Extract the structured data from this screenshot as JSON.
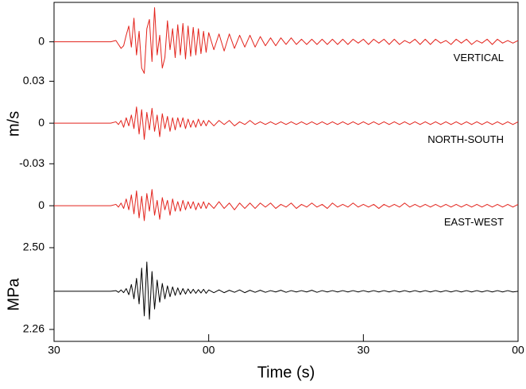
{
  "chart_data": [
    {
      "type": "line",
      "label": "VERTICAL",
      "color": "#e3231c",
      "xlim": [
        0,
        90
      ],
      "ylim": [
        -0.031,
        0.03
      ],
      "yticks": [
        0,
        {
          "value": -0.03,
          "label": "0.03"
        }
      ],
      "x": [
        0,
        11,
        12,
        12.5,
        13,
        13.5,
        14,
        14.5,
        15,
        15.5,
        16,
        16.5,
        17,
        17.5,
        18,
        18.5,
        19,
        19.5,
        20,
        20.5,
        21,
        21.5,
        22,
        22.5,
        23,
        23.5,
        24,
        24.5,
        25,
        25.5,
        26,
        26.5,
        27,
        27.5,
        28,
        28.5,
        29,
        29.5,
        30,
        31,
        32,
        33,
        34,
        35,
        36,
        37,
        38,
        39,
        40,
        41,
        42,
        43,
        44,
        45,
        46,
        47,
        48,
        49,
        50,
        51,
        52,
        53,
        54,
        55,
        56,
        57,
        58,
        59,
        60,
        61,
        62,
        63,
        64,
        65,
        66,
        67,
        68,
        69,
        70,
        71,
        72,
        73,
        74,
        75,
        76,
        77,
        78,
        79,
        80,
        81,
        82,
        83,
        84,
        85,
        86,
        87,
        88,
        89,
        90
      ],
      "values": [
        0,
        0,
        0.001,
        -0.002,
        -0.005,
        -0.003,
        0.005,
        0.012,
        -0.004,
        0.018,
        -0.01,
        0.008,
        -0.02,
        -0.024,
        0.01,
        0.017,
        -0.015,
        0.026,
        -0.01,
        0.005,
        -0.02,
        -0.012,
        0.016,
        -0.006,
        0.01,
        -0.012,
        0.013,
        -0.01,
        0.014,
        -0.013,
        0.012,
        -0.011,
        0.011,
        -0.01,
        0.01,
        -0.009,
        0.008,
        -0.008,
        0.007,
        -0.006,
        0.006,
        -0.007,
        0.006,
        -0.005,
        0.005,
        -0.004,
        0.005,
        -0.004,
        0.004,
        -0.003,
        0.003,
        -0.003,
        0.003,
        -0.002,
        0.003,
        -0.002,
        0.002,
        -0.002,
        0.002,
        -0.002,
        0.002,
        -0.002,
        0.002,
        -0.002,
        0.002,
        -0.002,
        0.002,
        -0.001,
        0.002,
        -0.002,
        0.002,
        -0.001,
        0.002,
        -0.002,
        0.002,
        -0.002,
        0.001,
        -0.001,
        0.002,
        -0.002,
        0.002,
        -0.002,
        0.002,
        -0.001,
        0.001,
        -0.002,
        0.002,
        -0.001,
        0.002,
        -0.002,
        0.001,
        -0.001,
        0.002,
        -0.002,
        0.002,
        -0.001,
        0.001,
        -0.001,
        0.001
      ]
    },
    {
      "type": "line",
      "label": "NORTH-SOUTH",
      "ylabel": "m/s",
      "color": "#e3231c",
      "xlim": [
        0,
        90
      ],
      "ylim": [
        -0.031,
        0.03
      ],
      "yticks": [
        0,
        -0.03
      ],
      "x": [
        0,
        11,
        12,
        12.5,
        13,
        13.5,
        14,
        14.5,
        15,
        15.5,
        16,
        16.5,
        17,
        17.5,
        18,
        18.5,
        19,
        19.5,
        20,
        20.5,
        21,
        21.5,
        22,
        22.5,
        23,
        23.5,
        24,
        24.5,
        25,
        25.5,
        26,
        26.5,
        27,
        27.5,
        28,
        28.5,
        29,
        29.5,
        30,
        31,
        32,
        33,
        34,
        35,
        36,
        37,
        38,
        39,
        40,
        41,
        42,
        43,
        44,
        45,
        46,
        47,
        48,
        49,
        50,
        51,
        52,
        53,
        54,
        55,
        56,
        57,
        58,
        59,
        60,
        61,
        62,
        63,
        64,
        65,
        66,
        67,
        68,
        69,
        70,
        71,
        72,
        73,
        74,
        75,
        76,
        77,
        78,
        79,
        80,
        81,
        82,
        83,
        84,
        85,
        86,
        87,
        88,
        89,
        90
      ],
      "values": [
        0,
        0,
        0.001,
        -0.001,
        0.002,
        -0.003,
        0.004,
        -0.002,
        0.006,
        -0.004,
        0.012,
        -0.008,
        0.01,
        -0.012,
        0.008,
        -0.005,
        0.011,
        -0.006,
        0.006,
        -0.01,
        0.007,
        -0.004,
        0.005,
        -0.006,
        0.004,
        -0.005,
        0.004,
        -0.003,
        0.004,
        -0.004,
        0.003,
        -0.003,
        0.002,
        -0.003,
        0.003,
        -0.002,
        0.002,
        -0.002,
        0.002,
        -0.002,
        0.002,
        -0.001,
        0.002,
        -0.002,
        0.001,
        -0.001,
        0.002,
        -0.001,
        0.001,
        -0.001,
        0.001,
        -0.001,
        0.001,
        -0.001,
        0.001,
        -0.001,
        0.001,
        -0.001,
        0.001,
        -0.001,
        0.001,
        -0.001,
        0.001,
        -0.001,
        0.001,
        -0.001,
        0.001,
        -0.001,
        0.001,
        -0.001,
        0.001,
        -0.001,
        0.001,
        -0.001,
        0.001,
        -0.001,
        0.001,
        -0.001,
        0.001,
        -0.001,
        0.001,
        -0.001,
        0.001,
        -0.001,
        0.001,
        -0.001,
        0.001,
        -0.001,
        0.001,
        -0.001,
        0.001,
        -0.001,
        0.001,
        -0.001,
        0.001,
        -0.001,
        0.001,
        -0.001,
        0.001
      ]
    },
    {
      "type": "line",
      "label": "EAST-WEST",
      "color": "#e3231c",
      "xlim": [
        0,
        90
      ],
      "ylim": [
        -0.031,
        0.03
      ],
      "yticks": [
        0
      ],
      "x": [
        0,
        11,
        12,
        12.5,
        13,
        13.5,
        14,
        14.5,
        15,
        15.5,
        16,
        16.5,
        17,
        17.5,
        18,
        18.5,
        19,
        19.5,
        20,
        20.5,
        21,
        21.5,
        22,
        22.5,
        23,
        23.5,
        24,
        24.5,
        25,
        25.5,
        26,
        26.5,
        27,
        27.5,
        28,
        28.5,
        29,
        29.5,
        30,
        31,
        32,
        33,
        34,
        35,
        36,
        37,
        38,
        39,
        40,
        41,
        42,
        43,
        44,
        45,
        46,
        47,
        48,
        49,
        50,
        51,
        52,
        53,
        54,
        55,
        56,
        57,
        58,
        59,
        60,
        61,
        62,
        63,
        64,
        65,
        66,
        67,
        68,
        69,
        70,
        71,
        72,
        73,
        74,
        75,
        76,
        77,
        78,
        79,
        80,
        81,
        82,
        83,
        84,
        85,
        86,
        87,
        88,
        89,
        90
      ],
      "values": [
        0,
        0,
        0.001,
        -0.001,
        0.002,
        -0.002,
        0.005,
        -0.003,
        0.008,
        -0.006,
        0.011,
        -0.009,
        0.007,
        -0.011,
        0.009,
        -0.004,
        0.012,
        -0.007,
        0.004,
        -0.01,
        0.006,
        -0.003,
        0.004,
        -0.007,
        0.005,
        -0.004,
        0.003,
        -0.004,
        0.004,
        -0.003,
        0.003,
        -0.002,
        0.003,
        -0.003,
        0.002,
        -0.002,
        0.003,
        -0.002,
        0.002,
        -0.002,
        0.003,
        -0.002,
        0.002,
        -0.003,
        0.002,
        -0.002,
        0.002,
        -0.002,
        0.002,
        -0.001,
        0.002,
        -0.002,
        0.001,
        -0.001,
        0.002,
        -0.002,
        0.001,
        -0.001,
        0.002,
        -0.001,
        0.001,
        -0.002,
        0.002,
        -0.001,
        0.001,
        -0.001,
        0.002,
        -0.001,
        0.001,
        -0.001,
        0.001,
        -0.002,
        0.001,
        -0.001,
        0.001,
        -0.001,
        0.002,
        -0.001,
        0.001,
        -0.001,
        0.001,
        -0.001,
        0.001,
        -0.001,
        0.001,
        -0.001,
        0.001,
        -0.001,
        0.001,
        -0.001,
        0.001,
        -0.001,
        0.001,
        -0.001,
        0.001,
        -0.001,
        0.001,
        -0.001,
        0.001
      ]
    },
    {
      "type": "line",
      "ylabel": "MPa",
      "xlabel": "Time (s)",
      "color": "#000000",
      "xlim": [
        0,
        90
      ],
      "ylim": [
        2.225,
        2.5
      ],
      "yticks": [
        {
          "value": 2.5,
          "label": "2.50"
        },
        2.26
      ],
      "xticks": [
        {
          "value": 0,
          "label": "30"
        },
        {
          "value": 30,
          "label": "00"
        },
        {
          "value": 60,
          "label": "30"
        },
        {
          "value": 90,
          "label": "00"
        }
      ],
      "x": [
        0,
        11,
        12,
        12.5,
        13,
        13.5,
        14,
        14.5,
        15,
        15.5,
        16,
        16.5,
        17,
        17.5,
        18,
        18.5,
        19,
        19.5,
        20,
        20.5,
        21,
        21.5,
        22,
        22.5,
        23,
        23.5,
        24,
        24.5,
        25,
        25.5,
        26,
        26.5,
        27,
        27.5,
        28,
        28.5,
        29,
        29.5,
        30,
        31,
        32,
        33,
        34,
        35,
        36,
        37,
        38,
        39,
        40,
        41,
        42,
        43,
        44,
        45,
        46,
        47,
        48,
        49,
        50,
        51,
        52,
        53,
        54,
        55,
        56,
        57,
        58,
        59,
        60,
        61,
        62,
        63,
        64,
        65,
        66,
        67,
        68,
        69,
        70,
        71,
        72,
        73,
        74,
        75,
        76,
        77,
        78,
        79,
        80,
        81,
        82,
        83,
        84,
        85,
        86,
        87,
        88,
        89,
        90
      ],
      "values": [
        2.372,
        2.372,
        2.374,
        2.369,
        2.376,
        2.368,
        2.38,
        2.362,
        2.392,
        2.35,
        2.41,
        2.335,
        2.44,
        2.3,
        2.458,
        2.29,
        2.43,
        2.32,
        2.405,
        2.34,
        2.395,
        2.35,
        2.388,
        2.356,
        2.385,
        2.36,
        2.382,
        2.362,
        2.38,
        2.364,
        2.379,
        2.366,
        2.378,
        2.366,
        2.377,
        2.367,
        2.378,
        2.366,
        2.376,
        2.368,
        2.376,
        2.368,
        2.375,
        2.369,
        2.376,
        2.368,
        2.375,
        2.369,
        2.375,
        2.369,
        2.374,
        2.37,
        2.375,
        2.369,
        2.374,
        2.37,
        2.374,
        2.37,
        2.375,
        2.369,
        2.374,
        2.37,
        2.374,
        2.37,
        2.374,
        2.37,
        2.374,
        2.37,
        2.374,
        2.37,
        2.374,
        2.37,
        2.374,
        2.37,
        2.374,
        2.37,
        2.374,
        2.37,
        2.374,
        2.37,
        2.374,
        2.37,
        2.374,
        2.37,
        2.374,
        2.37,
        2.374,
        2.37,
        2.374,
        2.37,
        2.374,
        2.37,
        2.374,
        2.37,
        2.374,
        2.37,
        2.374,
        2.37,
        2.372
      ]
    }
  ]
}
